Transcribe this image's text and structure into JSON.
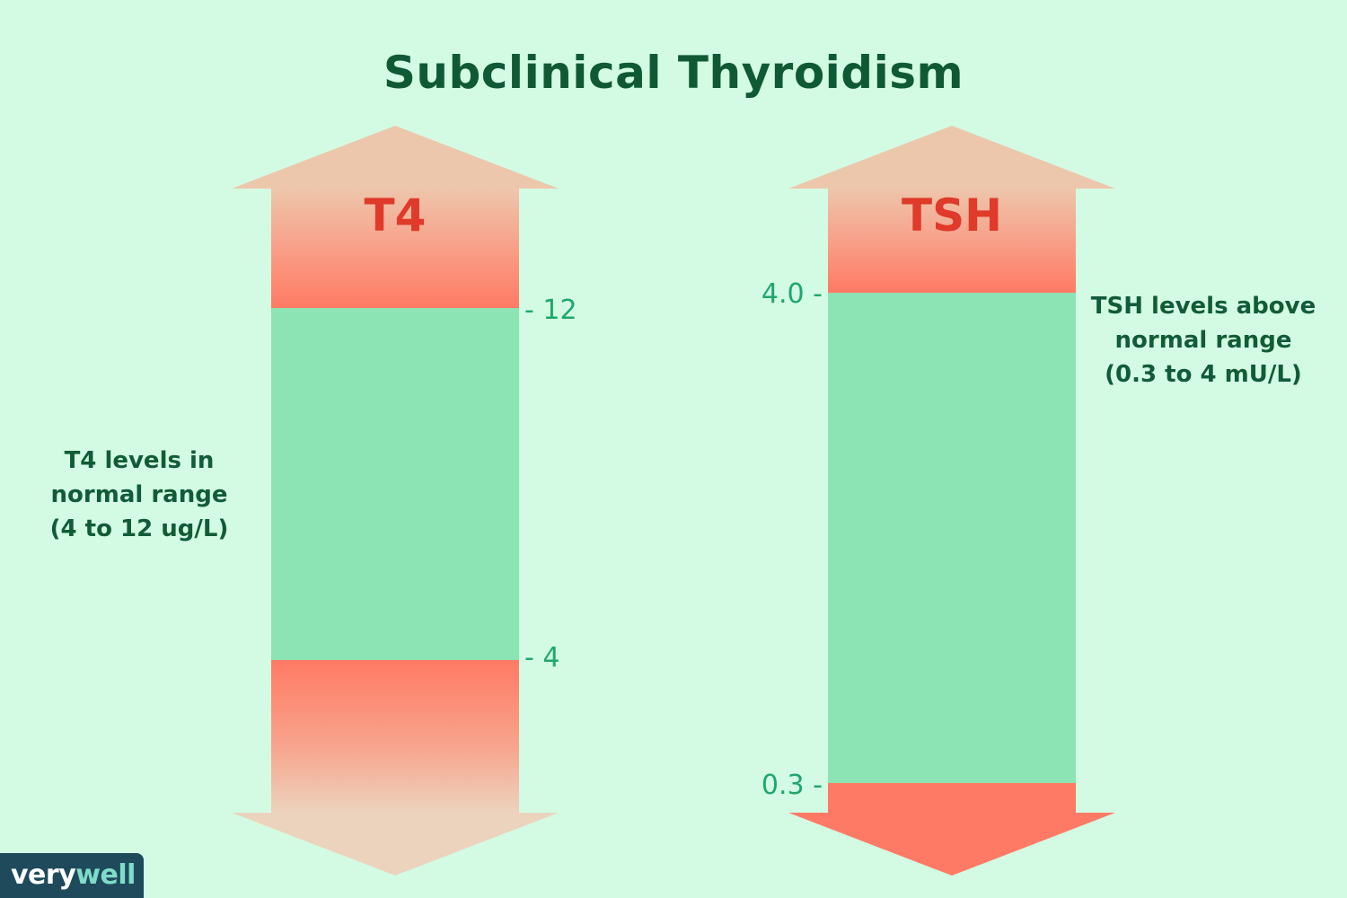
{
  "title": "Subclinical Thyroidism",
  "colors": {
    "background": "#d3fbe4",
    "normal_range": "#8ce4b4",
    "abnormal_range": "#ff7a64",
    "label_red": "#e03a2a",
    "text_green": "#115c36",
    "tick_green": "#1ea86a"
  },
  "t4": {
    "label": "T4",
    "ticks": {
      "upper": "- 12",
      "lower": "- 4"
    },
    "note": [
      "T4 levels in",
      "normal range",
      "(4 to 12 ug/L)"
    ],
    "normal_range": [
      4,
      12
    ],
    "status": "normal"
  },
  "tsh": {
    "label": "TSH",
    "ticks": {
      "upper": "4.0 -",
      "lower": "0.3 -"
    },
    "note": [
      "TSH levels above",
      "normal range",
      "(0.3 to 4 mU/L)"
    ],
    "normal_range": [
      0.3,
      4.0
    ],
    "status": "above normal"
  },
  "logo": {
    "part1": "very",
    "part2": "well"
  }
}
